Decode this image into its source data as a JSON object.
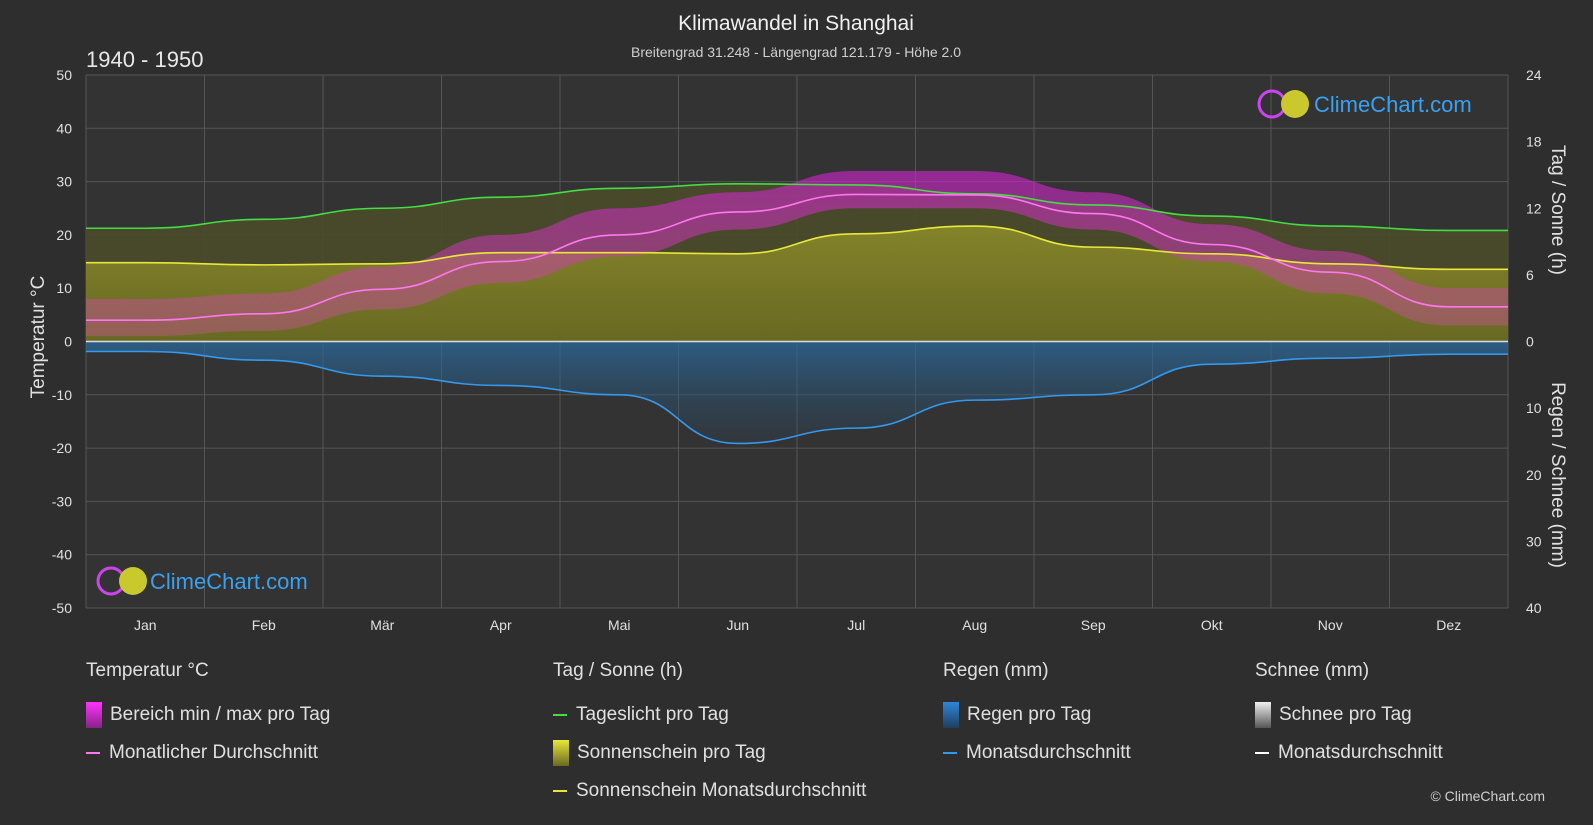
{
  "header": {
    "title": "Klimawandel in Shanghai",
    "subtitle": "Breitengrad 31.248 - Längengrad 121.179 - Höhe 2.0",
    "period": "1940 - 1950"
  },
  "brand": {
    "logo_text": "ClimeChart.com",
    "copyright": "© ClimeChart.com"
  },
  "chart_data": {
    "type": "line",
    "title": "Klimawandel in Shanghai",
    "categories": [
      "Jan",
      "Feb",
      "Mär",
      "Apr",
      "Mai",
      "Jun",
      "Jul",
      "Aug",
      "Sep",
      "Okt",
      "Nov",
      "Dez"
    ],
    "axes": {
      "left": {
        "label": "Temperatur °C",
        "ylim": [
          -50,
          50
        ],
        "ticks": [
          "50",
          "40",
          "30",
          "20",
          "10",
          "0",
          "-10",
          "-20",
          "-30",
          "-40",
          "-50"
        ]
      },
      "right_top": {
        "label": "Tag / Sonne (h)",
        "ylim": [
          0,
          24
        ],
        "ticks": [
          "24",
          "18",
          "12",
          "6",
          "0"
        ]
      },
      "right_bottom": {
        "label": "Regen / Schnee (mm)",
        "ylim": [
          0,
          40
        ],
        "ticks": [
          "0",
          "10",
          "20",
          "30",
          "40"
        ]
      }
    },
    "series": [
      {
        "name": "Tageslicht pro Tag",
        "unit": "h",
        "color": "#44dd44",
        "values": [
          10.2,
          11.0,
          12.0,
          13.0,
          13.8,
          14.2,
          14.1,
          13.3,
          12.3,
          11.3,
          10.4,
          10.0
        ]
      },
      {
        "name": "Sonnenschein Monatsdurchschnitt",
        "unit": "h",
        "color": "#e8e83a",
        "values": [
          7.1,
          6.9,
          7.0,
          8.0,
          8.0,
          7.9,
          9.7,
          10.4,
          8.5,
          7.9,
          7.0,
          6.5
        ]
      },
      {
        "name": "Monatlicher Durchschnitt",
        "unit": "°C",
        "color": "#ff77ee",
        "values": [
          4.0,
          5.2,
          9.8,
          15.0,
          20.0,
          24.3,
          27.6,
          27.5,
          24.0,
          18.2,
          13.0,
          6.5
        ]
      },
      {
        "name": "Monatsdurchschnitt Regen",
        "unit": "mm",
        "color": "#3399ee",
        "values": [
          1.5,
          2.8,
          5.2,
          6.6,
          8.0,
          15.3,
          13.0,
          8.8,
          8.0,
          3.4,
          2.5,
          1.9
        ]
      },
      {
        "name": "Bereich min / max pro Tag",
        "unit": "°C",
        "min": [
          1.0,
          2.0,
          6.0,
          11.0,
          16.0,
          21.0,
          25.0,
          25.0,
          21.0,
          15.0,
          9.0,
          3.0
        ],
        "max": [
          8.0,
          9.0,
          14.0,
          20.0,
          25.0,
          28.0,
          32.0,
          32.0,
          28.0,
          22.0,
          17.0,
          10.0
        ]
      }
    ]
  },
  "legend": {
    "groups": [
      {
        "title": "Temperatur °C",
        "items": [
          {
            "label": "Bereich min / max pro Tag",
            "kind": "box",
            "color": "#dd22dd"
          },
          {
            "label": "Monatlicher Durchschnitt",
            "kind": "line",
            "color": "#ff77ee"
          }
        ]
      },
      {
        "title": "Tag / Sonne (h)",
        "items": [
          {
            "label": "Tageslicht pro Tag",
            "kind": "line",
            "color": "#44dd44"
          },
          {
            "label": "Sonnenschein pro Tag",
            "kind": "box",
            "color": "#c8c830"
          },
          {
            "label": "Sonnenschein Monatsdurchschnitt",
            "kind": "line",
            "color": "#e8e83a"
          }
        ]
      },
      {
        "title": "Regen (mm)",
        "items": [
          {
            "label": "Regen pro Tag",
            "kind": "box",
            "color": "#2d86d8"
          },
          {
            "label": "Monatsdurchschnitt",
            "kind": "line",
            "color": "#3399ee"
          }
        ]
      },
      {
        "title": "Schnee (mm)",
        "items": [
          {
            "label": "Schnee pro Tag",
            "kind": "box",
            "color": "#dddddd"
          },
          {
            "label": "Monatsdurchschnitt",
            "kind": "line",
            "color": "#ffffff"
          }
        ]
      }
    ]
  }
}
